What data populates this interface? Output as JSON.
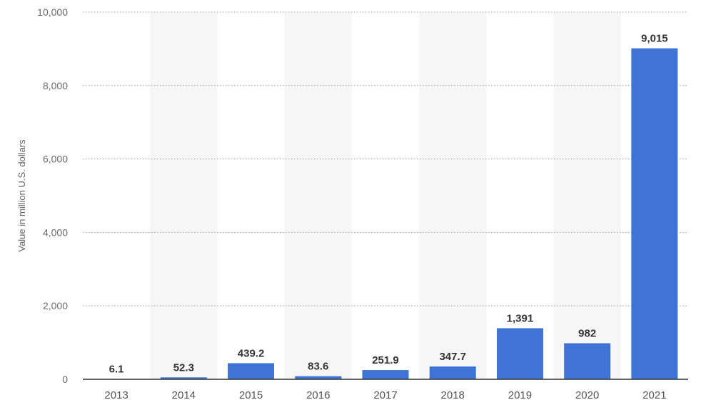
{
  "chart_data": {
    "type": "bar",
    "categories": [
      "2013",
      "2014",
      "2015",
      "2016",
      "2017",
      "2018",
      "2019",
      "2020",
      "2021"
    ],
    "values": [
      6.1,
      52.3,
      439.2,
      83.6,
      251.9,
      347.7,
      1391,
      982,
      9015
    ],
    "value_labels": [
      "6.1",
      "52.3",
      "439.2",
      "83.6",
      "251.9",
      "347.7",
      "1,391",
      "982",
      "9,015"
    ],
    "title": "",
    "xlabel": "",
    "ylabel": "Value in million U.S. dollars",
    "ylim": [
      0,
      10000
    ],
    "yticks": [
      0,
      2000,
      4000,
      6000,
      8000,
      10000
    ],
    "ytick_labels": [
      "0",
      "2,000",
      "4,000",
      "6,000",
      "8,000",
      "10,000"
    ],
    "grid": true,
    "bar_color": "#3f74d6",
    "alt_band_color": "#f6f6f6"
  }
}
